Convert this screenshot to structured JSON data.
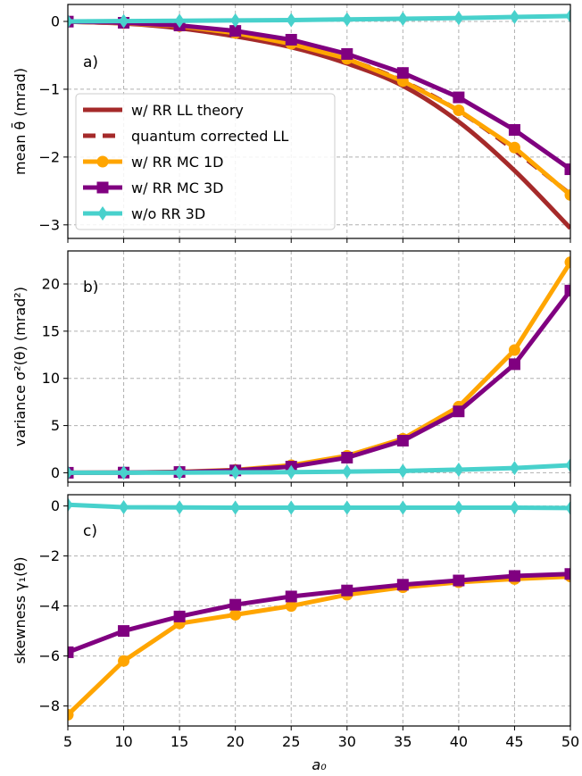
{
  "chart_data": [
    {
      "type": "line",
      "panel_label": "a)",
      "ylabel": "mean θ̄ (mrad)",
      "xlabel": "",
      "xlim": [
        5,
        50
      ],
      "ylim": [
        -3.2,
        0.25
      ],
      "yticks": [
        0,
        -1,
        -2,
        -3
      ],
      "ytick_labels": [
        "0",
        "−1",
        "−2",
        "−3"
      ],
      "grid": true,
      "legend_position": "left",
      "x": [
        5,
        10,
        15,
        20,
        25,
        30,
        35,
        40,
        45,
        50
      ],
      "series": [
        {
          "name": "w/ RR LL theory",
          "color": "#a52a2a",
          "style": "solid",
          "marker": "none",
          "x": [
            5,
            10,
            15,
            20,
            25,
            30,
            35,
            40,
            45,
            50
          ],
          "values": [
            -0.004,
            -0.03,
            -0.1,
            -0.22,
            -0.38,
            -0.62,
            -0.95,
            -1.48,
            -2.2,
            -3.05
          ]
        },
        {
          "name": "quantum corrected LL",
          "color": "#a52a2a",
          "style": "dashed",
          "marker": "none",
          "x": [
            5,
            10,
            15,
            20,
            25,
            30,
            35,
            40,
            45,
            50
          ],
          "values": [
            -0.003,
            -0.025,
            -0.08,
            -0.18,
            -0.34,
            -0.56,
            -0.88,
            -1.32,
            -1.9,
            -2.55
          ]
        },
        {
          "name": "w/ RR MC 1D",
          "color": "#ffa500",
          "style": "solid",
          "marker": "circle",
          "x": [
            5,
            10,
            15,
            20,
            25,
            30,
            35,
            40,
            45,
            50
          ],
          "values": [
            -0.003,
            -0.025,
            -0.07,
            -0.17,
            -0.33,
            -0.55,
            -0.88,
            -1.31,
            -1.86,
            -2.56
          ]
        },
        {
          "name": "w/ RR MC 3D",
          "color": "#800080",
          "style": "solid",
          "marker": "square",
          "x": [
            5,
            10,
            15,
            20,
            25,
            30,
            35,
            40,
            45,
            50
          ],
          "values": [
            -0.003,
            -0.02,
            -0.06,
            -0.14,
            -0.27,
            -0.48,
            -0.76,
            -1.12,
            -1.6,
            -2.18
          ]
        },
        {
          "name": "w/o RR 3D",
          "color": "#48d1cc",
          "style": "solid",
          "marker": "diamond",
          "x": [
            5,
            10,
            15,
            20,
            25,
            30,
            35,
            40,
            45,
            50
          ],
          "values": [
            0.0,
            0.005,
            0.01,
            0.015,
            0.02,
            0.03,
            0.04,
            0.05,
            0.065,
            0.08
          ]
        }
      ]
    },
    {
      "type": "line",
      "panel_label": "b)",
      "ylabel": "variance σ²(θ) (mrad²)",
      "xlabel": "",
      "xlim": [
        5,
        50
      ],
      "ylim": [
        -1,
        23.5
      ],
      "yticks": [
        0,
        5,
        10,
        15,
        20
      ],
      "ytick_labels": [
        "0",
        "5",
        "10",
        "15",
        "20"
      ],
      "grid": true,
      "series": [
        {
          "name": "w/ RR MC 1D",
          "color": "#ffa500",
          "style": "solid",
          "marker": "circle",
          "x": [
            5,
            10,
            15,
            20,
            25,
            30,
            35,
            40,
            45,
            50
          ],
          "values": [
            0.0,
            0.02,
            0.1,
            0.3,
            0.8,
            1.8,
            3.6,
            7.0,
            13.0,
            22.3
          ]
        },
        {
          "name": "w/ RR MC 3D",
          "color": "#800080",
          "style": "solid",
          "marker": "square",
          "x": [
            5,
            10,
            15,
            20,
            25,
            30,
            35,
            40,
            45,
            50
          ],
          "values": [
            0.0,
            0.02,
            0.08,
            0.25,
            0.65,
            1.6,
            3.4,
            6.5,
            11.5,
            19.3
          ]
        },
        {
          "name": "w/o RR 3D",
          "color": "#48d1cc",
          "style": "solid",
          "marker": "diamond",
          "x": [
            5,
            10,
            15,
            20,
            25,
            30,
            35,
            40,
            45,
            50
          ],
          "values": [
            0.0,
            0.01,
            0.02,
            0.04,
            0.07,
            0.12,
            0.2,
            0.33,
            0.5,
            0.8
          ]
        }
      ]
    },
    {
      "type": "line",
      "panel_label": "c)",
      "ylabel": "skewness γ₁(θ)",
      "xlabel": "a₀",
      "xlim": [
        5,
        50
      ],
      "ylim": [
        -8.8,
        0.45
      ],
      "yticks": [
        0,
        -2,
        -4,
        -6,
        -8
      ],
      "ytick_labels": [
        "0",
        "−2",
        "−4",
        "−6",
        "−8"
      ],
      "xticks": [
        5,
        10,
        15,
        20,
        25,
        30,
        35,
        40,
        45,
        50
      ],
      "xtick_labels": [
        "5",
        "10",
        "15",
        "20",
        "25",
        "30",
        "35",
        "40",
        "45",
        "50"
      ],
      "grid": true,
      "series": [
        {
          "name": "w/ RR MC 1D",
          "color": "#ffa500",
          "style": "solid",
          "marker": "circle",
          "x": [
            5,
            10,
            15,
            20,
            25,
            30,
            35,
            40,
            45,
            50
          ],
          "values": [
            -8.35,
            -6.2,
            -4.7,
            -4.35,
            -4.0,
            -3.55,
            -3.25,
            -3.05,
            -2.92,
            -2.82
          ]
        },
        {
          "name": "w/ RR MC 3D",
          "color": "#800080",
          "style": "solid",
          "marker": "square",
          "x": [
            5,
            10,
            15,
            20,
            25,
            30,
            35,
            40,
            45,
            50
          ],
          "values": [
            -5.85,
            -5.0,
            -4.42,
            -3.95,
            -3.62,
            -3.38,
            -3.15,
            -2.98,
            -2.8,
            -2.72
          ]
        },
        {
          "name": "w/o RR 3D",
          "color": "#48d1cc",
          "style": "solid",
          "marker": "diamond",
          "x": [
            5,
            10,
            15,
            20,
            25,
            30,
            35,
            40,
            45,
            50
          ],
          "values": [
            0.05,
            -0.05,
            -0.06,
            -0.07,
            -0.07,
            -0.07,
            -0.07,
            -0.07,
            -0.07,
            -0.08
          ]
        }
      ]
    }
  ]
}
